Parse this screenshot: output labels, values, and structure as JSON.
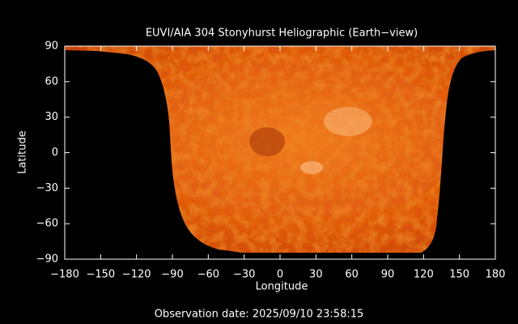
{
  "chart_data": {
    "type": "map",
    "title": "EUVI/AIA 304 Stonyhurst Heliographic (Earth−view)",
    "xlabel": "Longitude",
    "ylabel": "Latitude",
    "annotation": "Observation date: 2025/09/10 23:58:15",
    "xlim": [
      -180,
      180
    ],
    "ylim": [
      -90,
      90
    ],
    "xticks": [
      {
        "value": -180,
        "label": "−180"
      },
      {
        "value": -150,
        "label": "−150"
      },
      {
        "value": -120,
        "label": "−120"
      },
      {
        "value": -90,
        "label": "−90"
      },
      {
        "value": -60,
        "label": "−60"
      },
      {
        "value": -30,
        "label": "−30"
      },
      0,
      30,
      60,
      90,
      120,
      150,
      180
    ],
    "yticks": [
      {
        "value": -90,
        "label": "−90"
      },
      {
        "value": -60,
        "label": "−60"
      },
      {
        "value": -30,
        "label": "−30"
      },
      0,
      30,
      60,
      90
    ]
  }
}
